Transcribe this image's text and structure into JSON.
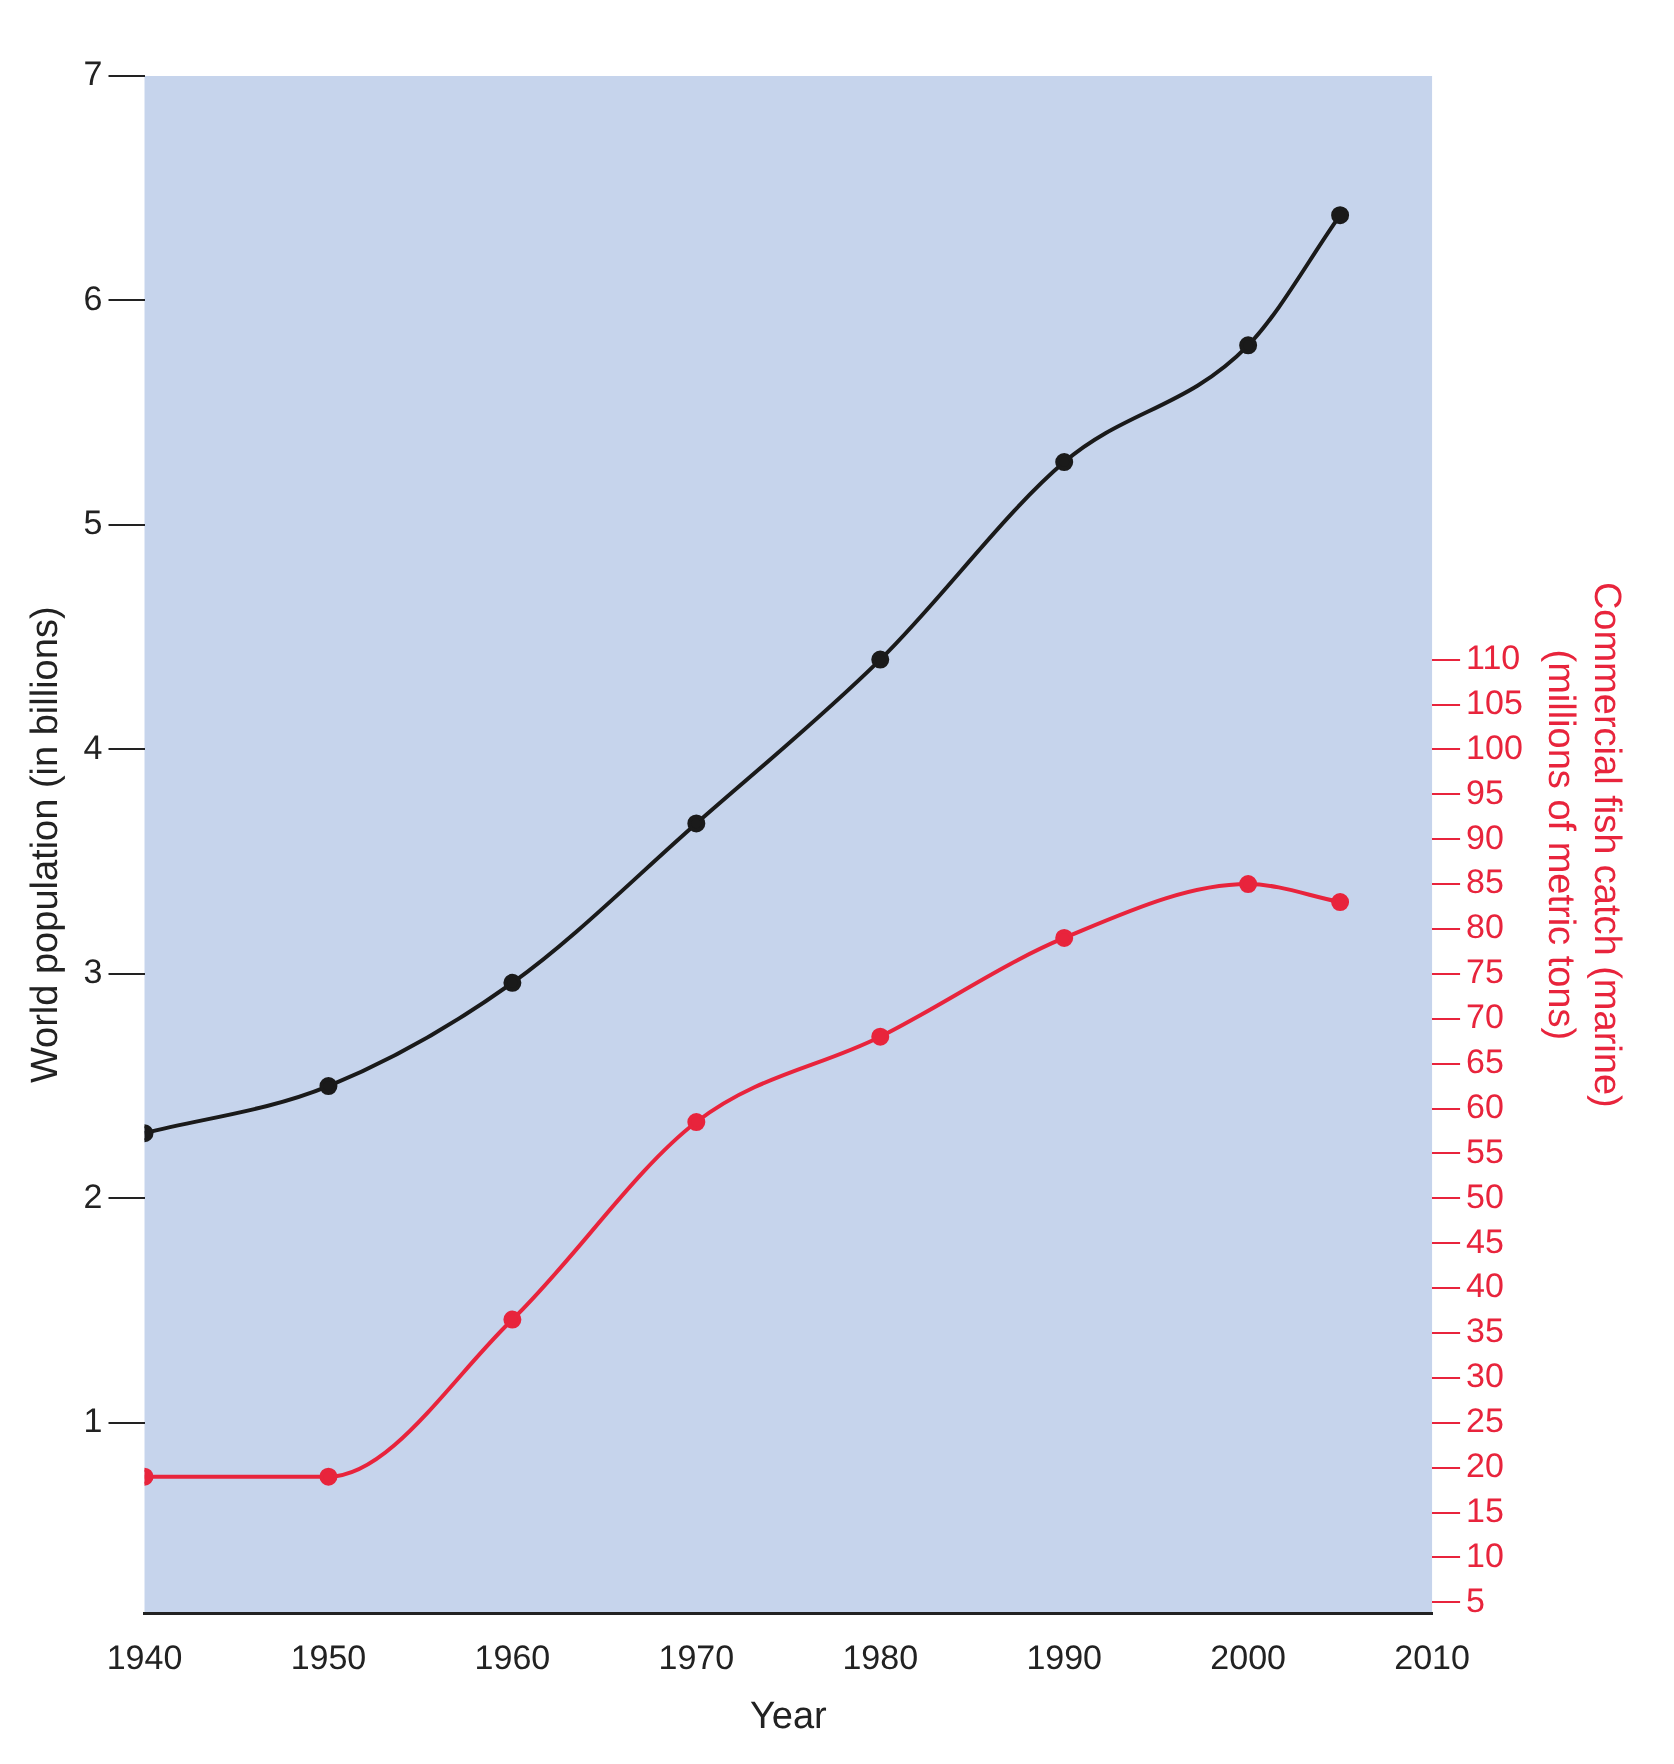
{
  "chart_data": {
    "type": "line",
    "xlabel": "Year",
    "ylabel": "World population (in billions)",
    "y2label": "Commercial fish catch (marine)\n(millions of metric tons)",
    "x": [
      1940,
      1950,
      1960,
      1970,
      1980,
      1990,
      2000,
      2005
    ],
    "series": [
      {
        "color": "#1a1a1a",
        "values": [
          2.29,
          2.5,
          2.96,
          3.67,
          4.4,
          5.28,
          5.8,
          6.38
        ]
      },
      {
        "color": "#e8243c",
        "axis": "y2",
        "values": [
          19,
          19,
          36.5,
          58.5,
          68,
          79,
          85,
          83
        ]
      }
    ],
    "xlim": [
      1940,
      2010
    ],
    "xticks": [
      1940,
      1950,
      1960,
      1970,
      1980,
      1990,
      2000,
      2010
    ],
    "ylim": [
      0.15,
      7
    ],
    "yticks": [
      1,
      2,
      3,
      4,
      5,
      6,
      7
    ],
    "y2lim": [
      3.75,
      175
    ],
    "y2ticks": [
      5,
      10,
      15,
      20,
      25,
      30,
      35,
      40,
      45,
      50,
      55,
      60,
      65,
      70,
      75,
      80,
      85,
      90,
      95,
      100,
      105,
      110
    ],
    "marker": "circle",
    "line_style": "solid",
    "grid": false,
    "legend": false
  }
}
